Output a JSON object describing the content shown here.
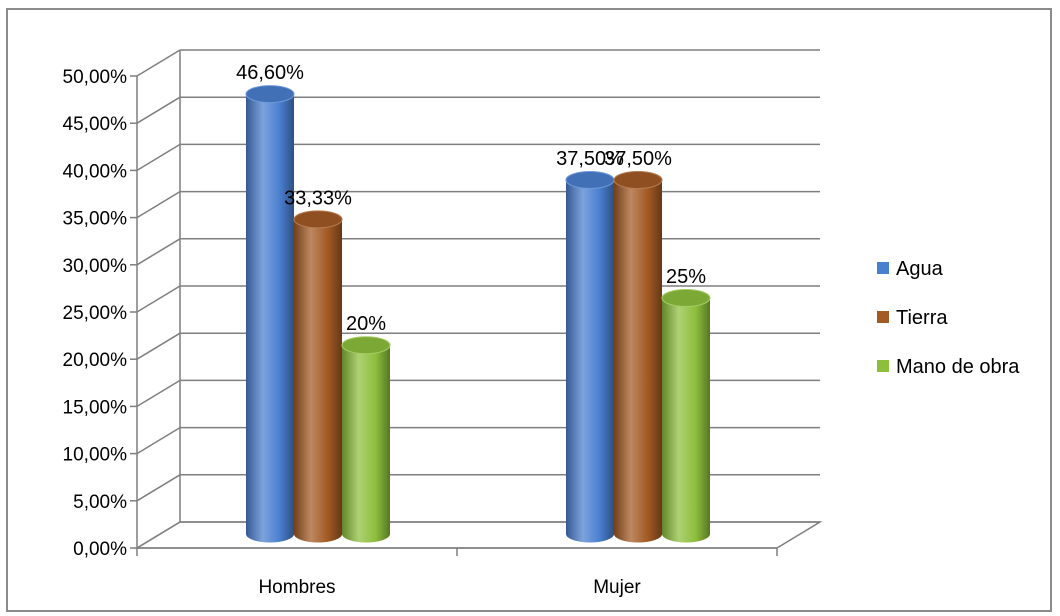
{
  "chart_data": {
    "type": "bar",
    "title": "",
    "xlabel": "",
    "ylabel": "",
    "categories": [
      "Hombres",
      "Mujer"
    ],
    "series": [
      {
        "name": "Agua",
        "values": [
          0.466,
          0.375
        ],
        "labels": [
          "46,60%",
          "37,50%"
        ],
        "color": "#4a7fd0"
      },
      {
        "name": "Tierra",
        "values": [
          0.3333,
          0.375
        ],
        "labels": [
          "33,33%",
          "37,50%"
        ],
        "color": "#a35a24"
      },
      {
        "name": "Mano de obra",
        "values": [
          0.2,
          0.25
        ],
        "labels": [
          "20%",
          "25%"
        ],
        "color": "#8dbf3c"
      }
    ],
    "ylim": [
      0,
      0.5
    ],
    "y_ticks": [
      "0,00%",
      "5,00%",
      "10,00%",
      "15,00%",
      "20,00%",
      "25,00%",
      "30,00%",
      "35,00%",
      "40,00%",
      "45,00%",
      "50,00%"
    ],
    "grid": true,
    "legend_position": "right",
    "style": "3d-cylinder"
  }
}
